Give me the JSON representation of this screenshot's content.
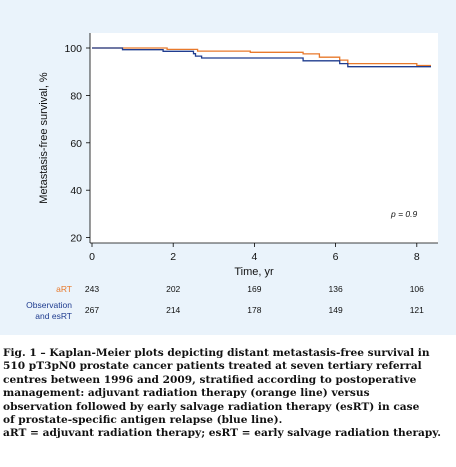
{
  "figure": {
    "chart_data": {
      "type": "line",
      "subtype": "kaplan-meier step",
      "title": "",
      "xlabel": "Time, yr",
      "ylabel": "Metastasis-free survival, %",
      "xlim": [
        0,
        8.4
      ],
      "ylim": [
        20,
        100
      ],
      "x_ticks": [
        "0",
        "2",
        "4",
        "6",
        "8"
      ],
      "y_ticks": [
        "20",
        "40",
        "60",
        "80",
        "100"
      ],
      "grid": false,
      "annotation": "p = 0.9",
      "series": [
        {
          "name": "aRT",
          "color": "#e8792b",
          "points": [
            [
              0,
              100
            ],
            [
              1.85,
              100
            ],
            [
              1.85,
              99.4
            ],
            [
              2.6,
              99.4
            ],
            [
              2.6,
              98.7
            ],
            [
              3.9,
              98.7
            ],
            [
              3.9,
              98.2
            ],
            [
              5.2,
              98.2
            ],
            [
              5.2,
              97.5
            ],
            [
              5.6,
              97.5
            ],
            [
              5.6,
              96.1
            ],
            [
              6.1,
              96.1
            ],
            [
              6.1,
              94.9
            ],
            [
              6.3,
              94.9
            ],
            [
              6.3,
              93.4
            ],
            [
              8.0,
              93.4
            ],
            [
              8.0,
              92.6
            ],
            [
              8.35,
              92.6
            ]
          ]
        },
        {
          "name": "Observation and esRT",
          "color": "#1f3c8f",
          "points": [
            [
              0,
              100
            ],
            [
              0.75,
              100
            ],
            [
              0.75,
              99.3
            ],
            [
              1.75,
              99.3
            ],
            [
              1.75,
              98.6
            ],
            [
              2.5,
              98.6
            ],
            [
              2.5,
              97.6
            ],
            [
              2.55,
              97.6
            ],
            [
              2.55,
              96.6
            ],
            [
              2.7,
              96.6
            ],
            [
              2.7,
              95.8
            ],
            [
              5.2,
              95.8
            ],
            [
              5.2,
              94.6
            ],
            [
              6.1,
              94.6
            ],
            [
              6.1,
              93.4
            ],
            [
              6.3,
              93.4
            ],
            [
              6.3,
              92.1
            ],
            [
              8.35,
              92.1
            ]
          ]
        }
      ],
      "risk_table": {
        "times": [
          "0",
          "2",
          "4",
          "6",
          "8"
        ],
        "rows": [
          {
            "label": "aRT",
            "color": "#e8792b",
            "values": [
              "243",
              "202",
              "169",
              "136",
              "106"
            ]
          },
          {
            "label_line1": "Observation",
            "label_line2": "and esRT",
            "color": "#1f3c8f",
            "values": [
              "267",
              "214",
              "178",
              "149",
              "121"
            ]
          }
        ]
      }
    }
  },
  "caption": {
    "line1": "Fig. 1 – Kaplan-Meier plots depicting distant metastasis-free survival in",
    "line2": "510 pT3pN0 prostate cancer patients treated at seven tertiary referral",
    "line3": "centres between 1996 and 2009, stratified according to postoperative",
    "line4": "management: adjuvant radiation therapy (orange line) versus",
    "line5": "observation followed by early salvage radiation therapy (esRT) in case",
    "line6": "of prostate-specific antigen relapse (blue line).",
    "line7": "aRT = adjuvant radiation therapy; esRT = early salvage radiation therapy."
  }
}
